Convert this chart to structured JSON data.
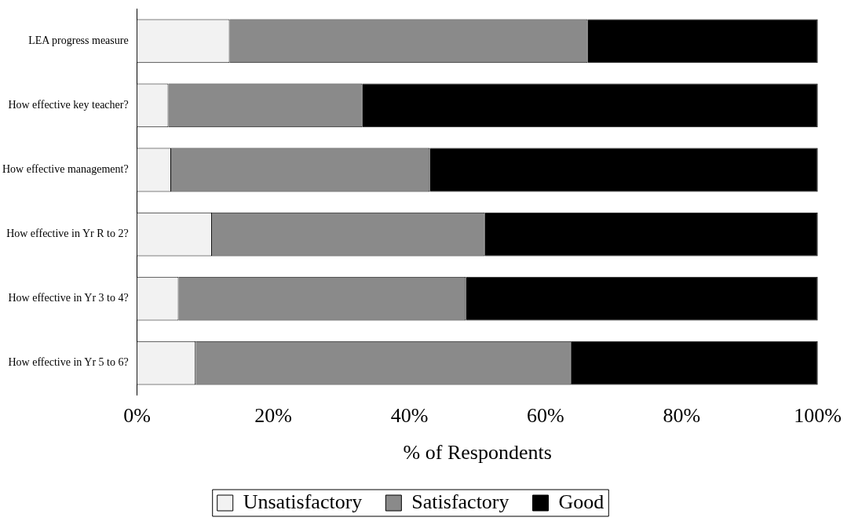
{
  "chart_data": {
    "type": "bar",
    "orientation": "horizontal",
    "stacked": true,
    "categories": [
      "LEA progress measure",
      "How effective key teacher?",
      "How effective management?",
      "How effective in Yr R to 2?",
      "How effective in Yr 3 to 4?",
      "How effective in Yr 5 to 6?"
    ],
    "series": [
      {
        "name": "Unsatisfactory",
        "color": "#f2f2f2",
        "values": [
          13.6,
          4.6,
          5.0,
          11.0,
          6.1,
          8.6
        ]
      },
      {
        "name": "Satisfactory",
        "color": "#8a8a8a",
        "values": [
          52.6,
          28.5,
          38.0,
          40.1,
          42.2,
          55.2
        ]
      },
      {
        "name": "Good",
        "color": "#000000",
        "values": [
          33.8,
          66.9,
          57.0,
          48.9,
          51.7,
          36.2
        ]
      }
    ],
    "xlabel": "% of Respondents",
    "xlim": [
      0,
      100
    ],
    "xticks": [
      {
        "value": 0,
        "label": "0%"
      },
      {
        "value": 20,
        "label": "20%"
      },
      {
        "value": 40,
        "label": "40%"
      },
      {
        "value": 60,
        "label": "60%"
      },
      {
        "value": 80,
        "label": "80%"
      },
      {
        "value": 100,
        "label": "100%"
      }
    ],
    "grid": false,
    "legend": "bottom"
  }
}
